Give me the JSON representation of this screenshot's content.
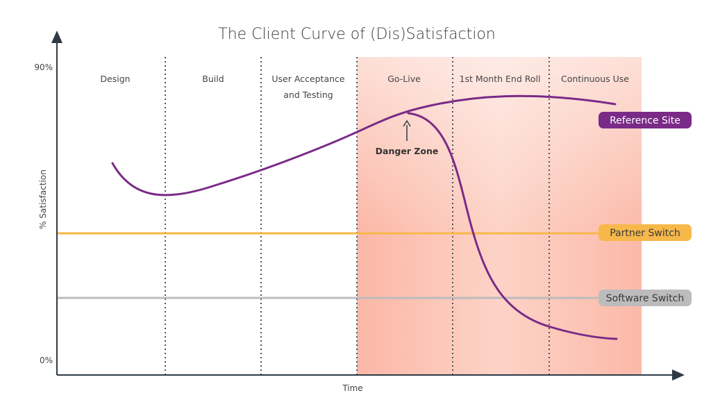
{
  "title": "The Client Curve of (Dis)Satisfaction",
  "y_axis": {
    "label": "% Satisfaction",
    "top_tick": "90%",
    "bottom_tick": "0%"
  },
  "x_axis": {
    "label": "Time"
  },
  "phases": [
    {
      "line1": "Design",
      "line2": ""
    },
    {
      "line1": "Build",
      "line2": ""
    },
    {
      "line1": "User Acceptance",
      "line2": "and Testing"
    },
    {
      "line1": "Go-Live",
      "line2": ""
    },
    {
      "line1": "1st Month End Roll",
      "line2": ""
    },
    {
      "line1": "Continuous Use",
      "line2": ""
    }
  ],
  "annotation": {
    "label": "Danger Zone"
  },
  "labels": {
    "reference_site": "Reference Site",
    "partner_switch": "Partner Switch",
    "software_switch": "Software Switch"
  },
  "colors": {
    "curve": "#7a2a87",
    "reference_pill": "#7a2a87",
    "partner": "#f7b84a",
    "software": "#bcbcbc",
    "danger_zone": "#f7a996",
    "axis": "#2f3a46",
    "divider": "#4a5563"
  }
}
